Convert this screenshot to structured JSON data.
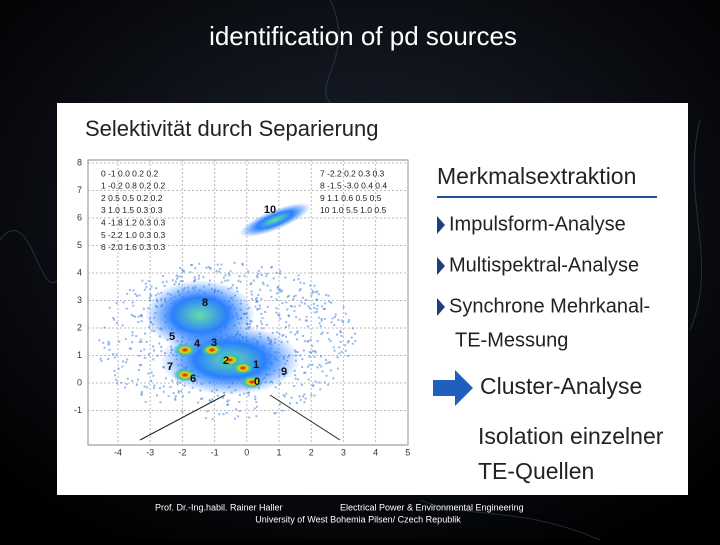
{
  "title": "identification of pd sources",
  "panel": {
    "heading": "Selektivität durch Separierung",
    "plot": {
      "x_ticks": [
        "-4",
        "-3",
        "-2",
        "-1",
        "0",
        "1",
        "2",
        "3",
        "4",
        "5"
      ],
      "y_ticks": [
        "8",
        "7",
        "6",
        "5",
        "4",
        "3",
        "2",
        "1",
        "0",
        "-1"
      ],
      "table_left": [
        "0 -1 0.0 0.2 0.2",
        "1 -0.2 0.8 0.2 0.2",
        "2 0.5 0.5 0.2 0.2",
        "3 1.0 1.5 0.3 0.3",
        "4 -1.8 1.2 0.3 0.3",
        "5 -2.2 1.0 0.3 0.3",
        "6 -2.0 1.6 0.3 0.3"
      ],
      "table_right": [
        "7 -2.2 0.2 0.3 0.3",
        "8 -1.5 -3.0 0.4 0.4",
        "9 1.1 0.6 0.5 0.5",
        "10 1.0 5.5 1.0 0.5"
      ],
      "cluster_labels": [
        "10",
        "8",
        "5",
        "4",
        "3",
        "7",
        "2",
        "1",
        "6",
        "9",
        "0"
      ]
    },
    "features": {
      "heading": "Merkmalsextraktion",
      "items": [
        "Impulsform-Analyse",
        "Multispektral-Analyse",
        "Synchrone Mehrkanal-",
        "TE-Messung"
      ]
    },
    "arrow_item": "Cluster-Analyse",
    "result": [
      "Isolation einzelner",
      "TE-Quellen"
    ]
  },
  "footer": {
    "author": "Prof. Dr.-Ing.habil. Rainer Haller",
    "department": "Electrical Power & Environmental Engineering",
    "university": "University of West Bohemia Pilsen/ Czech Republik"
  }
}
